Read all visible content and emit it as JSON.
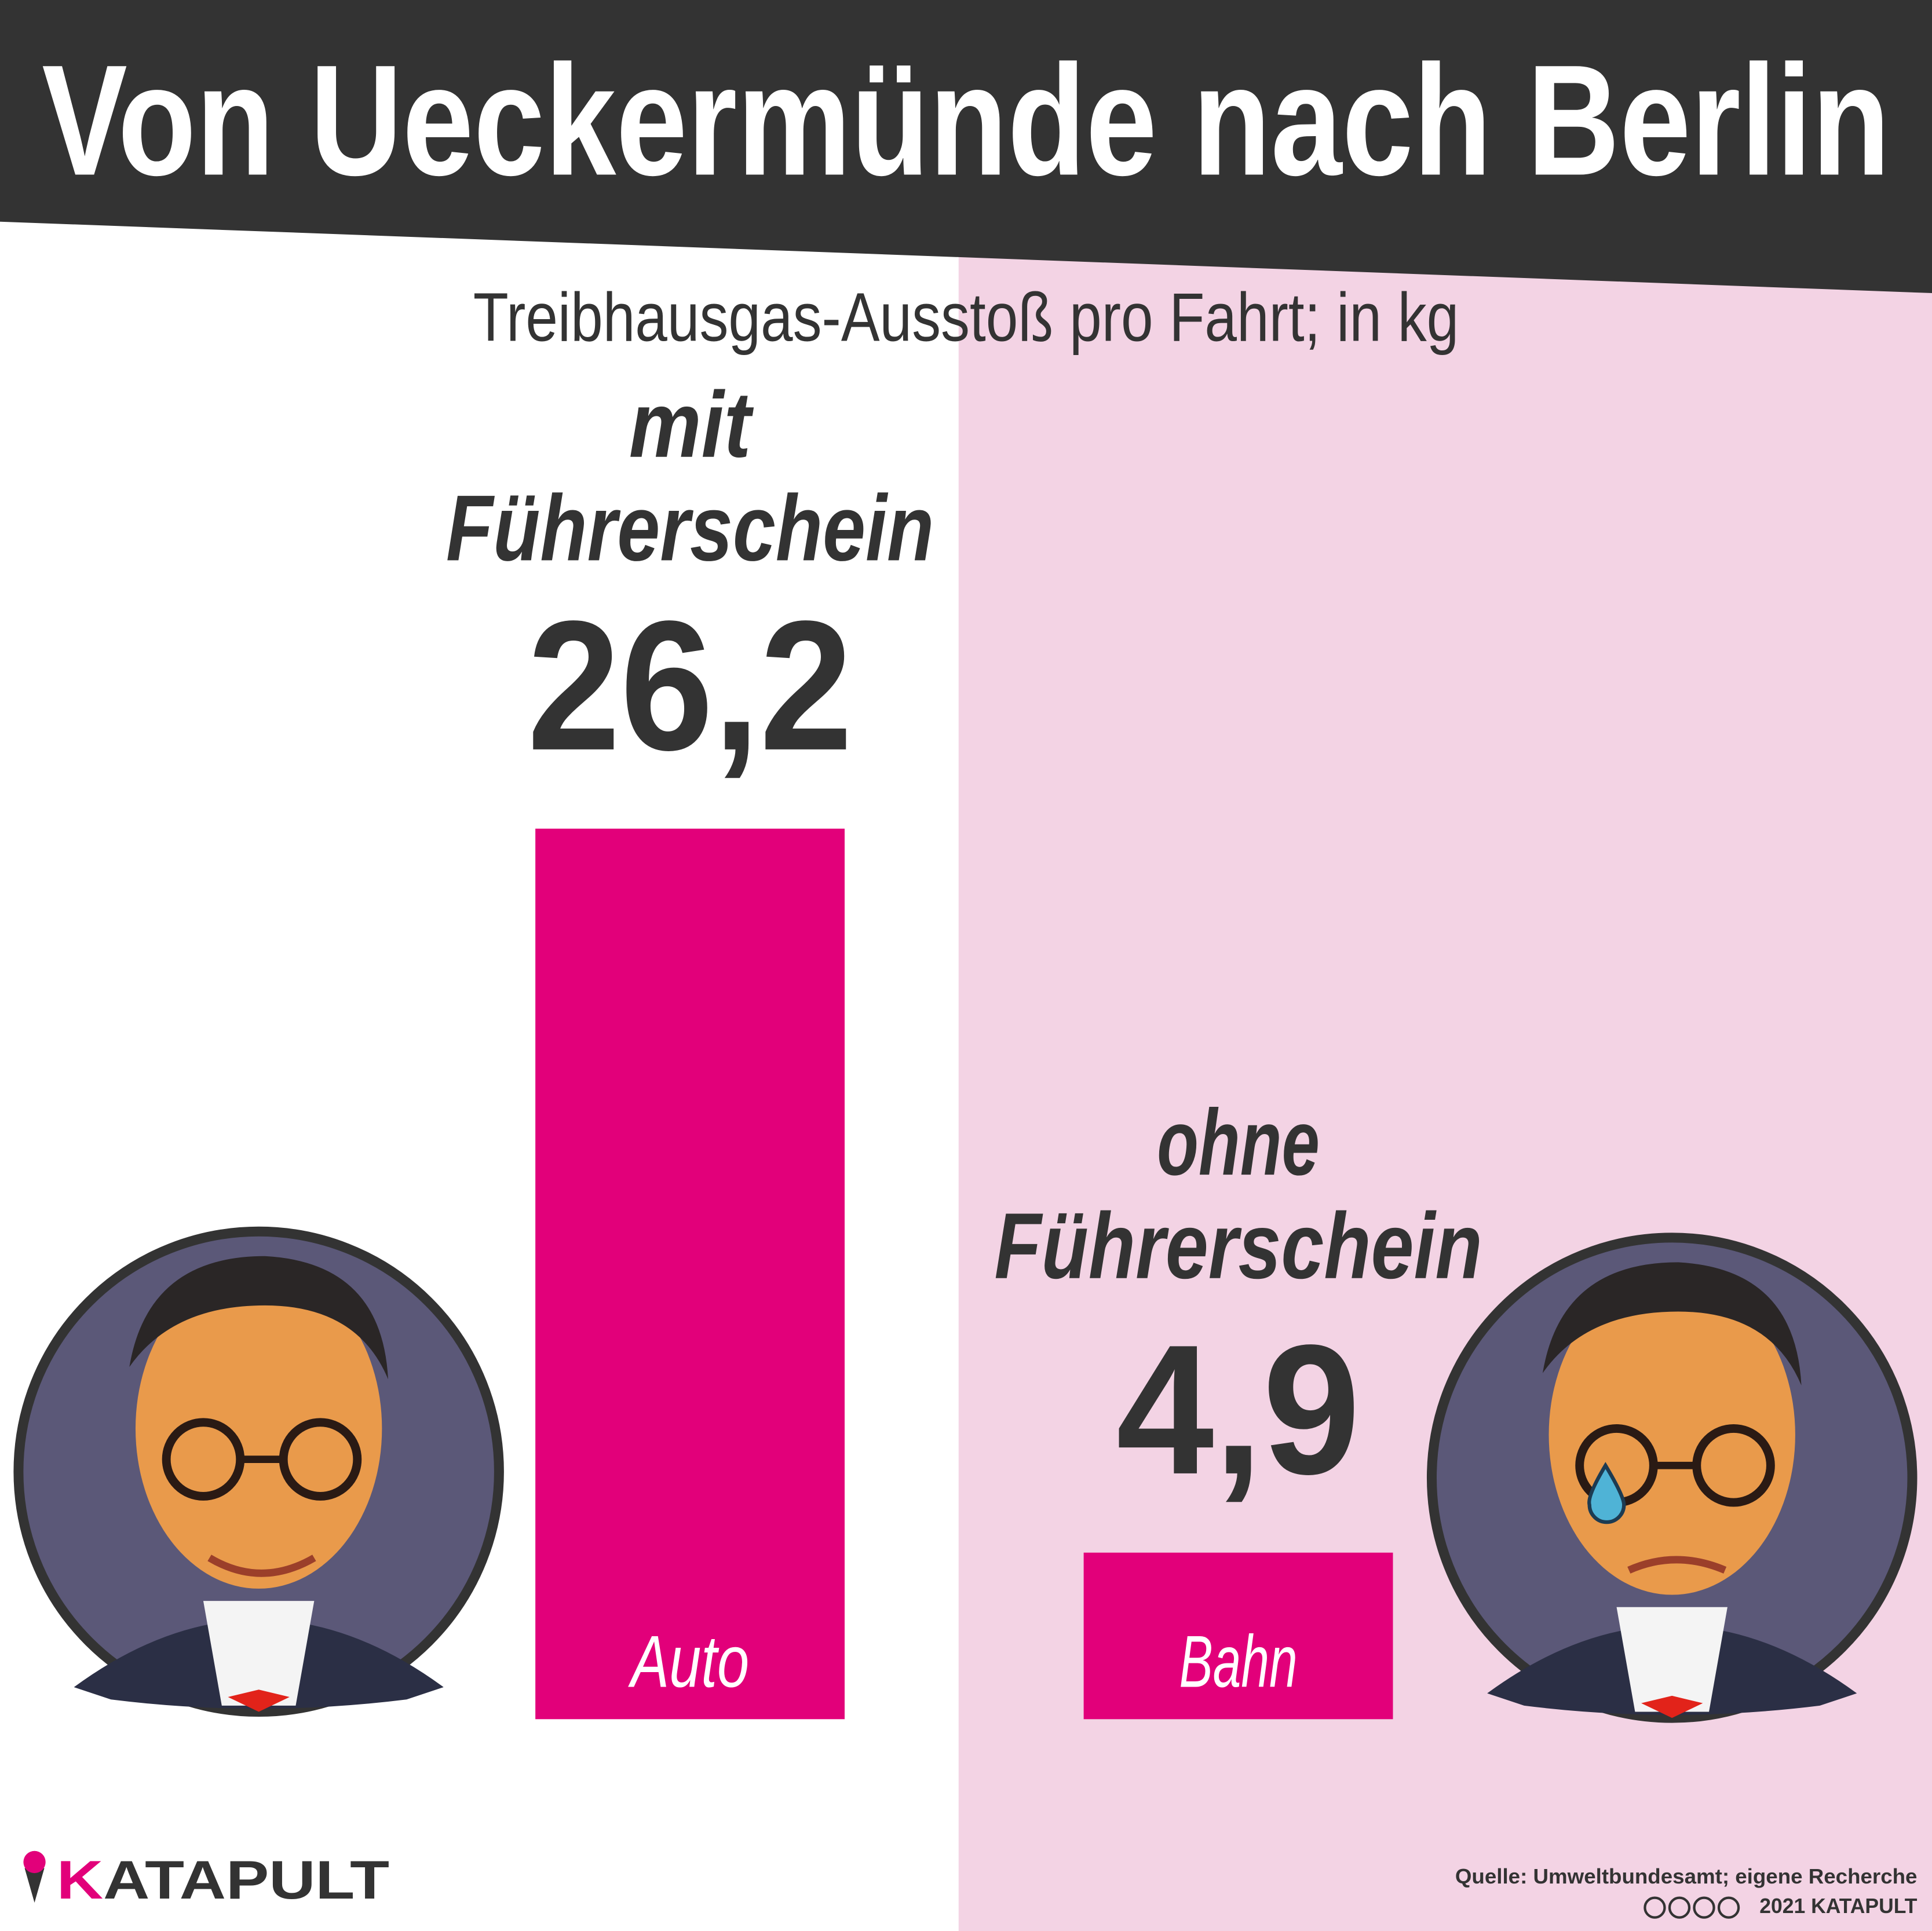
{
  "chart_data": {
    "type": "bar",
    "title": "Von Ueckermünde nach Berlin",
    "subtitle": "Treibhausgas-Ausstoß pro Fahrt; in kg",
    "categories": [
      "Auto",
      "Bahn"
    ],
    "group_labels": [
      [
        "mit",
        "Führerschein"
      ],
      [
        "ohne",
        "Führerschein"
      ]
    ],
    "values": [
      26.2,
      4.9
    ],
    "value_labels": [
      "26,2",
      "4,9"
    ],
    "color": "#e2007a",
    "source": "Quelle: Umweltbundesamt; eigene Recherche",
    "copyright": "2021 KATAPULT",
    "logo": "KATAPULT"
  }
}
